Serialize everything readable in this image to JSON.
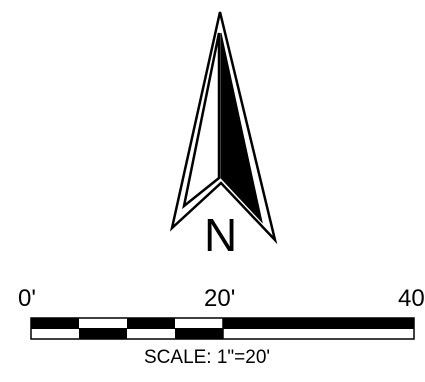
{
  "north_arrow": {
    "icon": "north-arrow-icon",
    "letter": "N",
    "color": "#000000"
  },
  "scale_bar": {
    "tick_labels": [
      "0'",
      "20'",
      "40"
    ],
    "caption": "SCALE: 1\"=20'",
    "colors": {
      "fill": "#000000",
      "empty": "#ffffff"
    }
  }
}
